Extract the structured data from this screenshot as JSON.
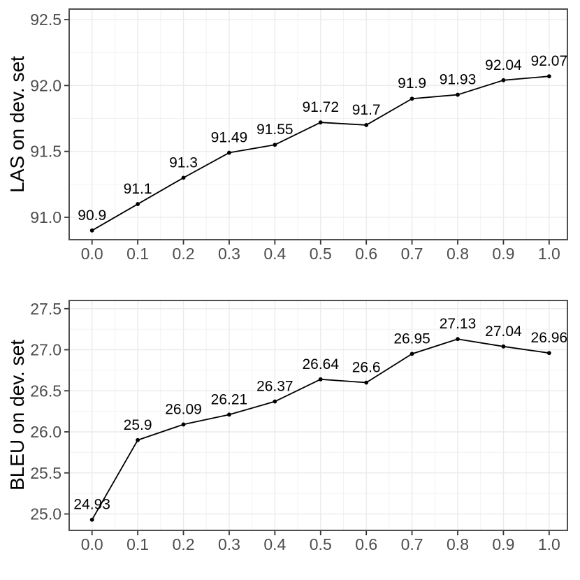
{
  "figure": {
    "background": "#ffffff",
    "colors": {
      "panel_border": "#4f4f4f",
      "grid_major": "#ebebeb",
      "grid_minor": "#f2f2f2",
      "tick_mark": "#333333",
      "tick_label": "#4d4d4d",
      "series_line": "#000000",
      "point_fill": "#000000",
      "point_label": "#000000",
      "axis_title": "#000000"
    }
  },
  "chart_data": [
    {
      "type": "line",
      "title": "",
      "xlabel": "",
      "ylabel": "LAS on dev. set",
      "x": [
        0.0,
        0.1,
        0.2,
        0.3,
        0.4,
        0.5,
        0.6,
        0.7,
        0.8,
        0.9,
        1.0
      ],
      "values": [
        90.9,
        91.1,
        91.3,
        91.49,
        91.55,
        91.72,
        91.7,
        91.9,
        91.93,
        92.04,
        92.07
      ],
      "point_labels": [
        "90.9",
        "91.1",
        "91.3",
        "91.49",
        "91.55",
        "91.72",
        "91.7",
        "91.9",
        "91.93",
        "92.04",
        "92.07"
      ],
      "xlim": [
        -0.05,
        1.04
      ],
      "ylim": [
        90.83,
        92.58
      ],
      "xticks": {
        "values": [
          0.0,
          0.1,
          0.2,
          0.3,
          0.4,
          0.5,
          0.6,
          0.7,
          0.8,
          0.9,
          1.0
        ],
        "labels": [
          "0.0",
          "0.1",
          "0.2",
          "0.3",
          "0.4",
          "0.5",
          "0.6",
          "0.7",
          "0.8",
          "0.9",
          "1.0"
        ]
      },
      "yticks": {
        "values": [
          91.0,
          91.5,
          92.0,
          92.5
        ],
        "labels": [
          "91.0",
          "91.5",
          "92.0",
          "92.5"
        ]
      },
      "grid": "major+minor",
      "legend": "none"
    },
    {
      "type": "line",
      "title": "",
      "xlabel": "",
      "ylabel": "BLEU on dev. set",
      "x": [
        0.0,
        0.1,
        0.2,
        0.3,
        0.4,
        0.5,
        0.6,
        0.7,
        0.8,
        0.9,
        1.0
      ],
      "values": [
        24.93,
        25.9,
        26.09,
        26.21,
        26.37,
        26.64,
        26.6,
        26.95,
        27.13,
        27.04,
        26.96
      ],
      "point_labels": [
        "24.93",
        "25.9",
        "26.09",
        "26.21",
        "26.37",
        "26.64",
        "26.6",
        "26.95",
        "27.13",
        "27.04",
        "26.96"
      ],
      "xlim": [
        -0.05,
        1.04
      ],
      "ylim": [
        24.8,
        27.6
      ],
      "xticks": {
        "values": [
          0.0,
          0.1,
          0.2,
          0.3,
          0.4,
          0.5,
          0.6,
          0.7,
          0.8,
          0.9,
          1.0
        ],
        "labels": [
          "0.0",
          "0.1",
          "0.2",
          "0.3",
          "0.4",
          "0.5",
          "0.6",
          "0.7",
          "0.8",
          "0.9",
          "1.0"
        ]
      },
      "yticks": {
        "values": [
          25.0,
          25.5,
          26.0,
          26.5,
          27.0,
          27.5
        ],
        "labels": [
          "25.0",
          "25.5",
          "26.0",
          "26.5",
          "27.0",
          "27.5"
        ]
      },
      "grid": "major+minor",
      "legend": "none"
    }
  ]
}
